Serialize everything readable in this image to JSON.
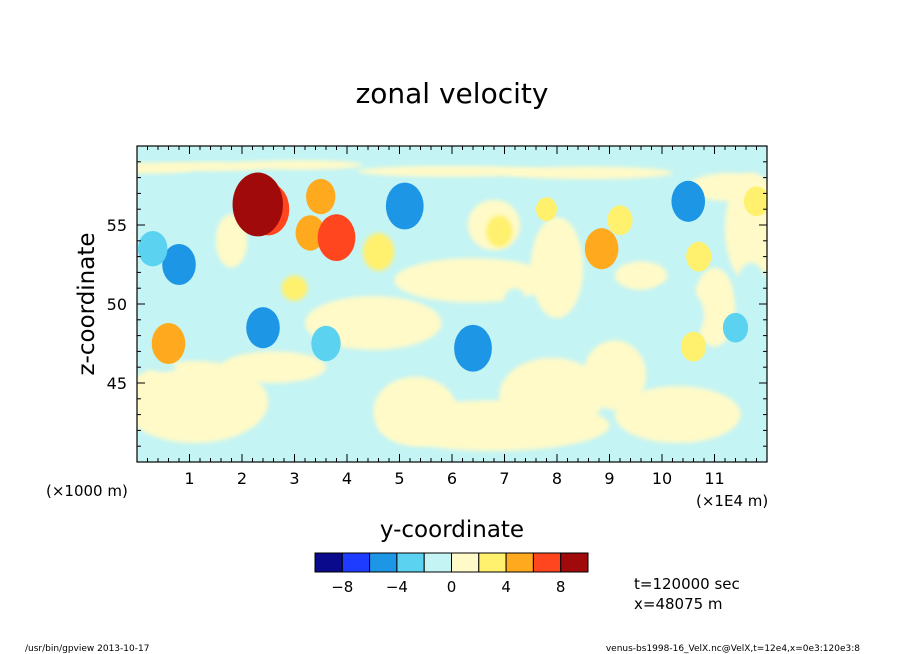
{
  "chart_data": {
    "type": "heatmap",
    "title": "zonal velocity",
    "xlabel": "y-coordinate",
    "ylabel": "z-coordinate",
    "x_scale_note": "(×1E4 m)",
    "y_scale_note": "(×1000 m)",
    "xlim": [
      0,
      12
    ],
    "ylim": [
      40,
      60
    ],
    "x_ticks": [
      "1",
      "2",
      "3",
      "4",
      "5",
      "6",
      "7",
      "8",
      "9",
      "10",
      "11"
    ],
    "y_ticks": [
      "45",
      "50",
      "55"
    ],
    "colorbar": {
      "levels": [
        -10,
        -8,
        -6,
        -4,
        -2,
        0,
        2,
        4,
        6,
        8,
        10
      ],
      "tick_labels": [
        "−8",
        "−4",
        "0",
        "4",
        "8"
      ],
      "colors": [
        "#0a0a8c",
        "#1e3cff",
        "#1e96e6",
        "#5ad2f0",
        "#c4f4f4",
        "#fffac8",
        "#fff06e",
        "#ffaa1e",
        "#ff461e",
        "#a00a0a"
      ]
    },
    "features": [
      {
        "y": 2.5,
        "z": 56.0,
        "value": 7
      },
      {
        "y": 2.3,
        "z": 56.3,
        "value": 9
      },
      {
        "y": 3.3,
        "z": 54.5,
        "value": 4
      },
      {
        "y": 3.8,
        "z": 54.2,
        "value": 6
      },
      {
        "y": 3.5,
        "z": 56.8,
        "value": 4
      },
      {
        "y": 0.6,
        "z": 47.5,
        "value": 5
      },
      {
        "y": 0.8,
        "z": 52.5,
        "value": -5
      },
      {
        "y": 0.3,
        "z": 53.5,
        "value": -4
      },
      {
        "y": 2.4,
        "z": 48.5,
        "value": -5
      },
      {
        "y": 3.6,
        "z": 47.5,
        "value": -4
      },
      {
        "y": 5.0,
        "z": 56.5,
        "value": -3
      },
      {
        "y": 5.1,
        "z": 56.2,
        "value": -6
      },
      {
        "y": 6.4,
        "z": 47.2,
        "value": -6
      },
      {
        "y": 8.85,
        "z": 53.5,
        "value": 5
      },
      {
        "y": 9.2,
        "z": 55.3,
        "value": 3
      },
      {
        "y": 10.5,
        "z": 56.5,
        "value": -5
      },
      {
        "y": 10.7,
        "z": 53.0,
        "value": 3
      },
      {
        "y": 10.6,
        "z": 47.3,
        "value": 3
      },
      {
        "y": 11.4,
        "z": 48.5,
        "value": -3
      },
      {
        "y": 11.8,
        "z": 56.5,
        "value": 3
      },
      {
        "y": 7.8,
        "z": 56.0,
        "value": 2
      },
      {
        "y": 8.6,
        "z": 55.5,
        "value": -2
      }
    ]
  },
  "annotations": {
    "time": "t=120000 sec",
    "position": "x=48075 m"
  },
  "footer": {
    "left": "/usr/bin/gpview   2013-10-17",
    "right": "venus-bs1998-16_VelX.nc@VelX,t=12e4,x=0e3:120e3:8"
  }
}
